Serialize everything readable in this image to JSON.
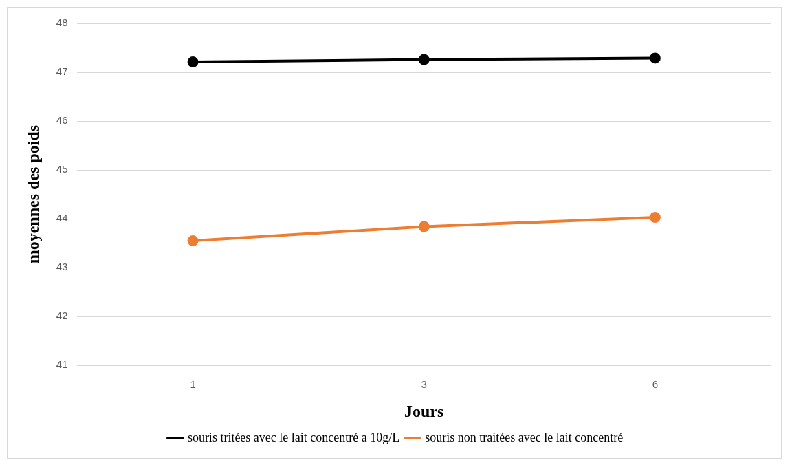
{
  "chart_data": {
    "type": "line",
    "xlabel": "Jours",
    "ylabel": "moyennes des poids",
    "categories": [
      "1",
      "3",
      "6"
    ],
    "series": [
      {
        "name": "souris tritées avec le lait concentré a 10g/L",
        "color": "#000000",
        "values": [
          47.21,
          47.26,
          47.29
        ]
      },
      {
        "name": "souris non traitées avec le lait concentré",
        "color": "#ed7d31",
        "values": [
          43.55,
          43.84,
          44.03
        ]
      }
    ],
    "ylim": [
      41,
      48
    ],
    "yticks": [
      41,
      42,
      43,
      44,
      45,
      46,
      47,
      48
    ],
    "grid": "y",
    "legend": "bottom",
    "marker": "circle",
    "line_style": "solid"
  }
}
